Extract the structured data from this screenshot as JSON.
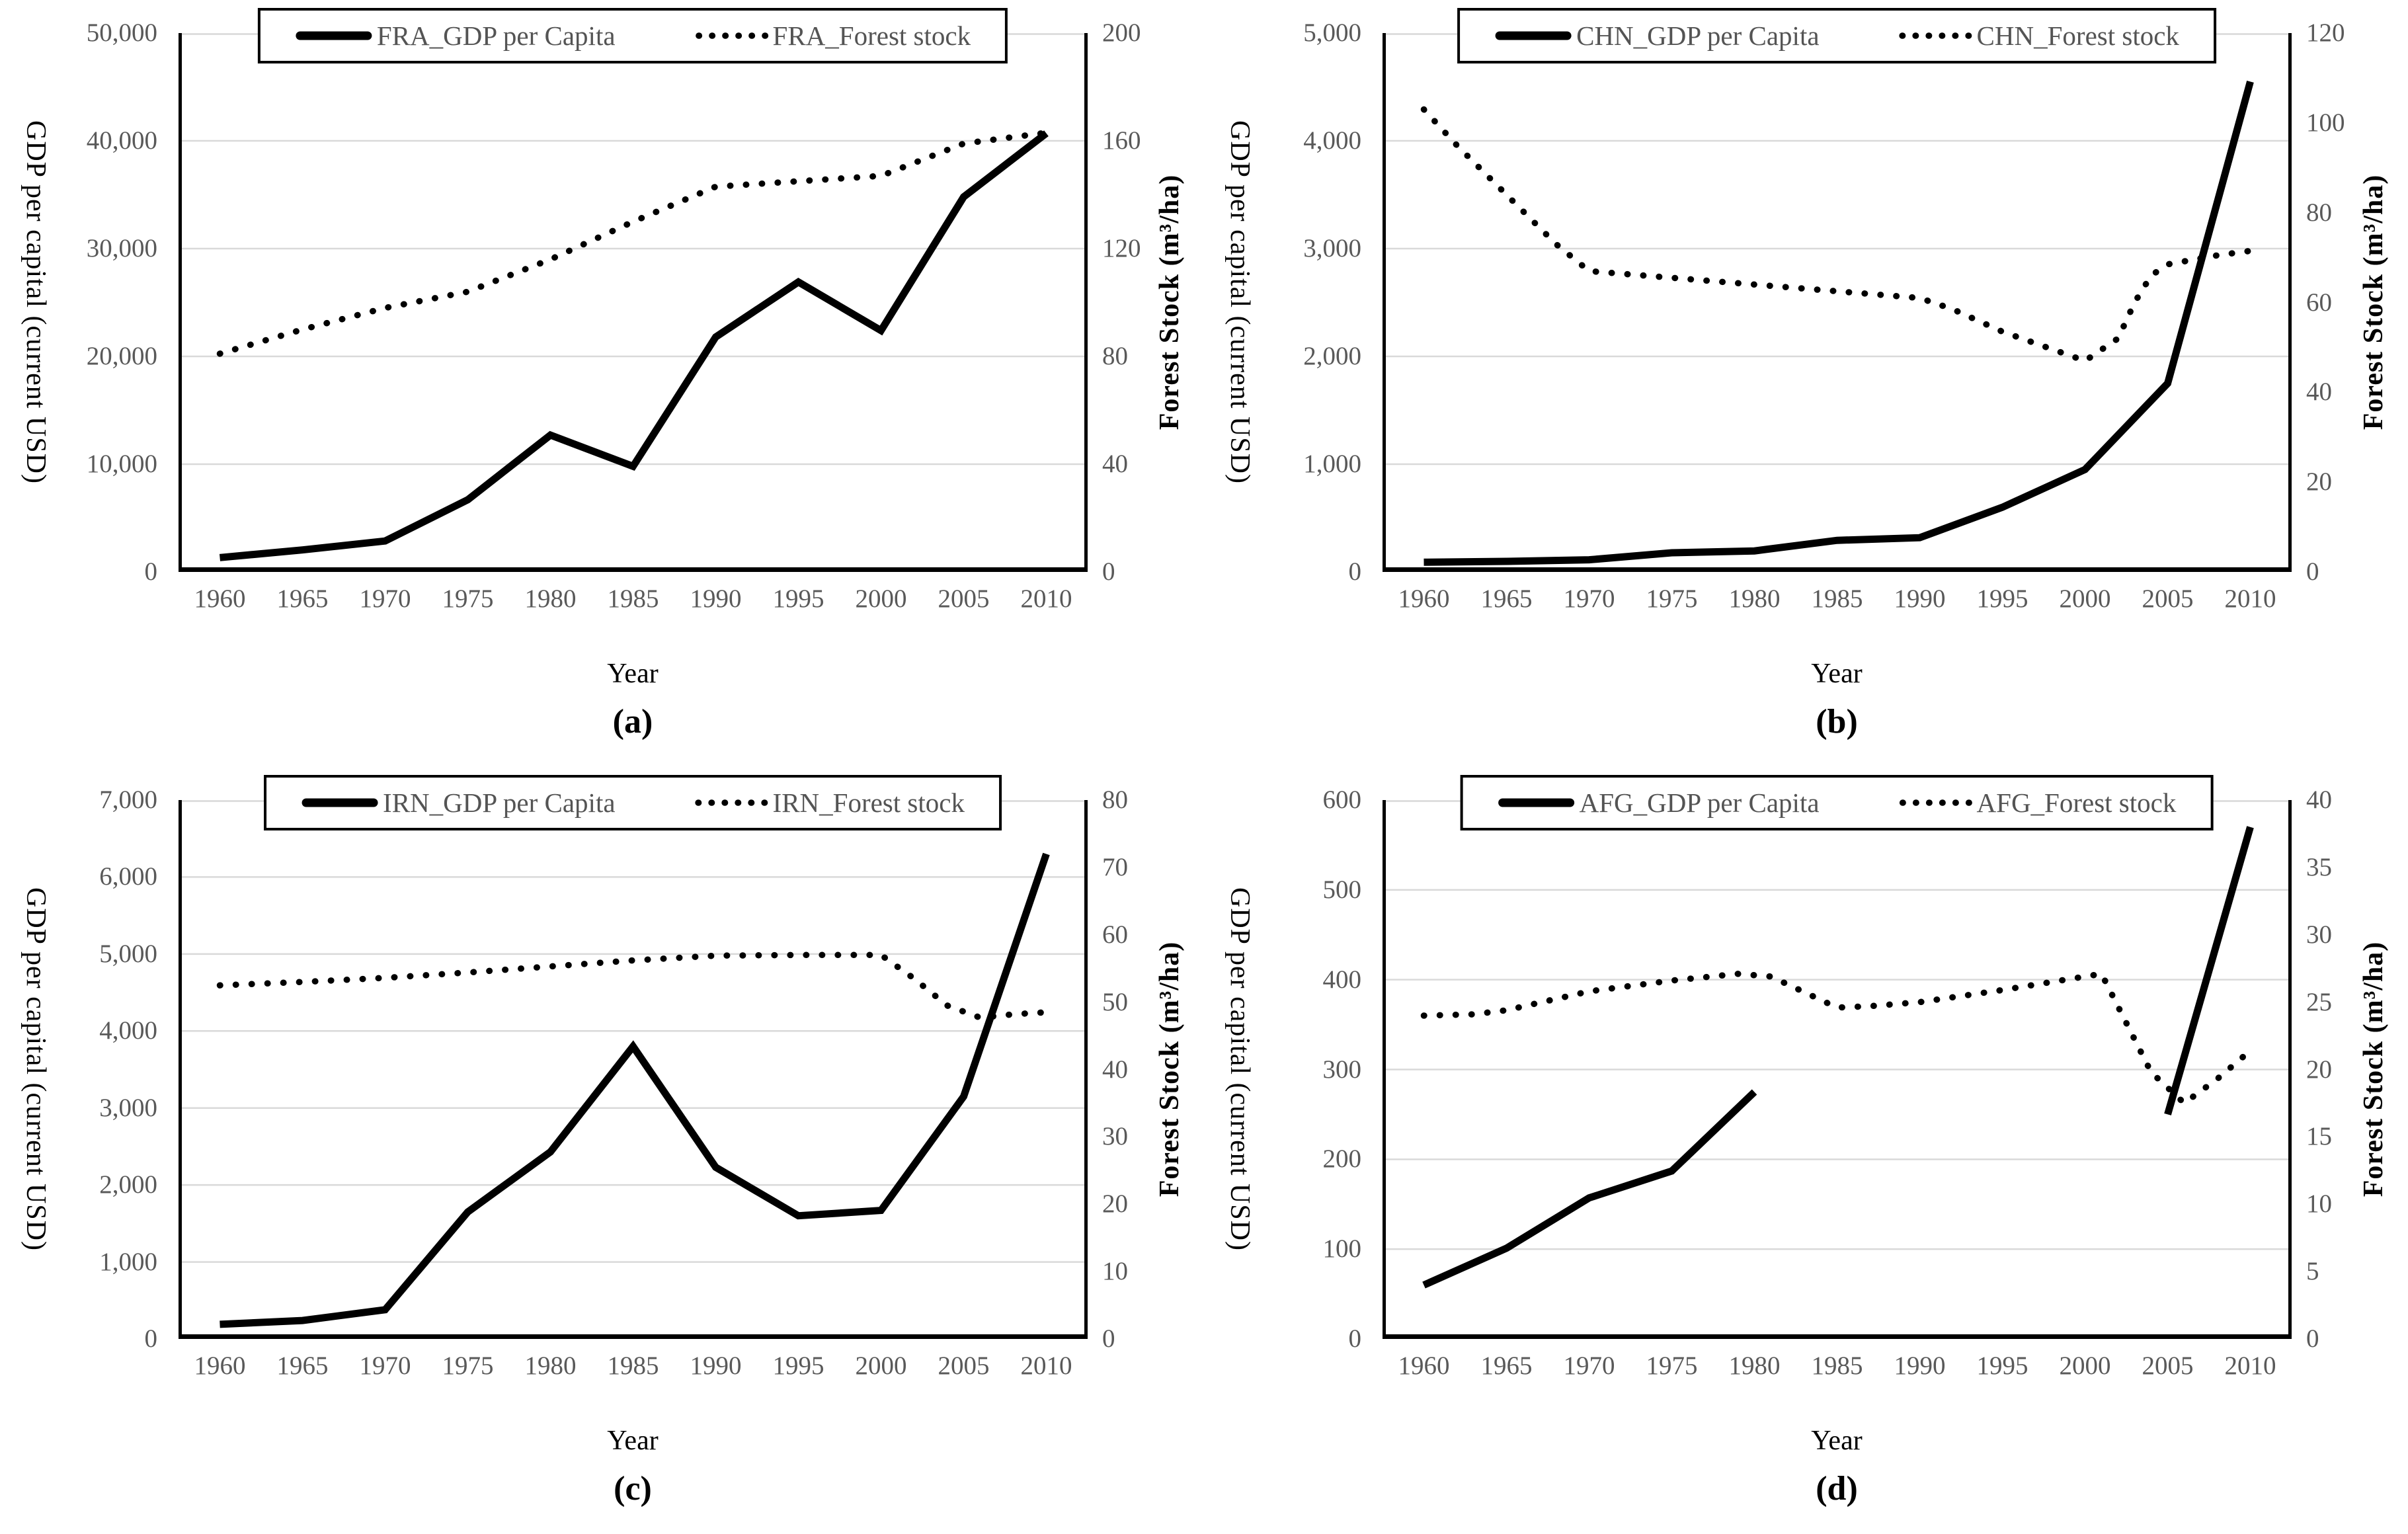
{
  "colors": {
    "line": "#000000",
    "grid": "#d9d9d9",
    "tick_text": "#595959",
    "legend_text": "#545454",
    "axis_text": "#000000",
    "background": "#ffffff"
  },
  "chart_data": [
    {
      "type": "line",
      "panel": "(a)",
      "country": "France",
      "xlabel": "Year",
      "ylabel_left": "GDP per capital (current USD)",
      "ylabel_right": "Forest Stock (m³/ha)",
      "legend_position": "top-center",
      "grid": true,
      "x_ticks": [
        1960,
        1965,
        1970,
        1975,
        1980,
        1985,
        1990,
        1995,
        2000,
        2005,
        2010
      ],
      "ylim_left": [
        0,
        50000
      ],
      "ytick_step_left": 10000,
      "ylim_right": [
        0,
        200
      ],
      "ytick_step_right": 40,
      "series": [
        {
          "name": "FRA_GDP per Capita",
          "axis": "left",
          "style": "solid",
          "segments": [
            {
              "x": [
                1960,
                1965,
                1970,
                1975,
                1980,
                1985,
                1990,
                1995,
                2000,
                2005,
                2010
              ],
              "values": [
                1330,
                2040,
                2870,
                6700,
                12700,
                9800,
                21800,
                26900,
                22400,
                34800,
                40700
              ]
            }
          ]
        },
        {
          "name": "FRA_Forest stock",
          "axis": "right",
          "style": "dotted",
          "segments": [
            {
              "x": [
                1960,
                1965,
                1970,
                1975,
                1980,
                1985,
                1990,
                1995,
                2000,
                2005,
                2010
              ],
              "values": [
                81,
                90,
                98,
                104,
                116,
                130,
                143,
                145,
                147,
                159,
                163
              ]
            }
          ]
        }
      ]
    },
    {
      "type": "line",
      "panel": "(b)",
      "country": "China",
      "xlabel": "Year",
      "ylabel_left": "GDP per capital (current USD)",
      "ylabel_right": "Forest Stock (m³/ha)",
      "legend_position": "top-center",
      "grid": true,
      "x_ticks": [
        1960,
        1965,
        1970,
        1975,
        1980,
        1985,
        1990,
        1995,
        2000,
        2005,
        2010
      ],
      "ylim_left": [
        0,
        5000
      ],
      "ytick_step_left": 1000,
      "ylim_right": [
        0,
        120
      ],
      "ytick_step_right": 20,
      "series": [
        {
          "name": "CHN_GDP per Capita",
          "axis": "left",
          "style": "solid",
          "segments": [
            {
              "x": [
                1960,
                1965,
                1970,
                1975,
                1980,
                1985,
                1990,
                1995,
                2000,
                2005,
                2010
              ],
              "values": [
                90,
                98,
                113,
                178,
                195,
                293,
                318,
                600,
                950,
                1750,
                4550
              ]
            }
          ]
        },
        {
          "name": "CHN_Forest stock",
          "axis": "right",
          "style": "dotted",
          "segments": [
            {
              "x": [
                1960,
                1962,
                1965,
                1968,
                1970,
                1975,
                1980,
                1985,
                1990,
                1992,
                1995,
                2000,
                2002,
                2003,
                2004,
                2005,
                2008,
                2010
              ],
              "values": [
                103,
                95,
                84,
                73,
                67,
                65.5,
                64,
                62.5,
                61,
                58.5,
                53.5,
                47,
                52,
                60,
                66,
                68.5,
                70.5,
                71.5
              ]
            }
          ]
        }
      ]
    },
    {
      "type": "line",
      "panel": "(c)",
      "country": "Iran",
      "xlabel": "Year",
      "ylabel_left": "GDP per capital (current  USD)",
      "ylabel_right": "Forest Stock (m³/ha)",
      "legend_position": "top-center",
      "grid": true,
      "x_ticks": [
        1960,
        1965,
        1970,
        1975,
        1980,
        1985,
        1990,
        1995,
        2000,
        2005,
        2010
      ],
      "ylim_left": [
        0,
        7000
      ],
      "ytick_step_left": 1000,
      "ylim_right": [
        0,
        80
      ],
      "ytick_step_right": 10,
      "series": [
        {
          "name": "IRN_GDP per Capita",
          "axis": "left",
          "style": "solid",
          "segments": [
            {
              "x": [
                1960,
                1965,
                1970,
                1975,
                1980,
                1985,
                1990,
                1995,
                2000,
                2005,
                2010
              ],
              "values": [
                190,
                240,
                380,
                1650,
                2430,
                3800,
                2230,
                1600,
                1670,
                3150,
                6300
              ]
            }
          ]
        },
        {
          "name": "IRN_Forest stock",
          "axis": "right",
          "style": "dotted",
          "segments": [
            {
              "x": [
                1960,
                1965,
                1970,
                1975,
                1980,
                1985,
                1990,
                1995,
                2000,
                2002,
                2004,
                2006,
                2008,
                2010
              ],
              "values": [
                52.5,
                53,
                53.6,
                54.4,
                55.3,
                56.2,
                56.9,
                57,
                57,
                53.5,
                49.5,
                47.7,
                48.2,
                48.5
              ]
            }
          ]
        }
      ]
    },
    {
      "type": "line",
      "panel": "(d)",
      "country": "Afghanistan",
      "xlabel": "Year",
      "ylabel_left": "GDP per capital (current USD)",
      "ylabel_right": "Forest Stock (m³/ha)",
      "legend_position": "top-center",
      "grid": true,
      "x_ticks": [
        1960,
        1965,
        1970,
        1975,
        1980,
        1985,
        1990,
        1995,
        2000,
        2005,
        2010
      ],
      "ylim_left": [
        0,
        600
      ],
      "ytick_step_left": 100,
      "ylim_right": [
        0,
        40
      ],
      "ytick_step_right": 5,
      "series": [
        {
          "name": "AFG_GDP per Capita",
          "axis": "left",
          "style": "solid",
          "segments": [
            {
              "x": [
                1960,
                1965,
                1970,
                1975,
                1980
              ],
              "values": [
                60,
                101,
                157,
                187,
                275
              ]
            },
            {
              "x": [
                2005,
                2010
              ],
              "values": [
                250,
                570
              ]
            }
          ]
        },
        {
          "name": "AFG_Forest stock",
          "axis": "right",
          "style": "dotted",
          "segments": [
            {
              "x": [
                1960,
                1963,
                1965,
                1970,
                1975,
                1979,
                1981,
                1985,
                1987,
                1990,
                1995,
                2000,
                2001,
                2004,
                2006,
                2008,
                2010
              ],
              "values": [
                24,
                24.1,
                24.4,
                25.8,
                26.6,
                27.1,
                26.9,
                24.6,
                24.7,
                25,
                25.9,
                26.9,
                27.1,
                19.8,
                17.5,
                19.3,
                21.4
              ]
            }
          ]
        }
      ]
    }
  ]
}
